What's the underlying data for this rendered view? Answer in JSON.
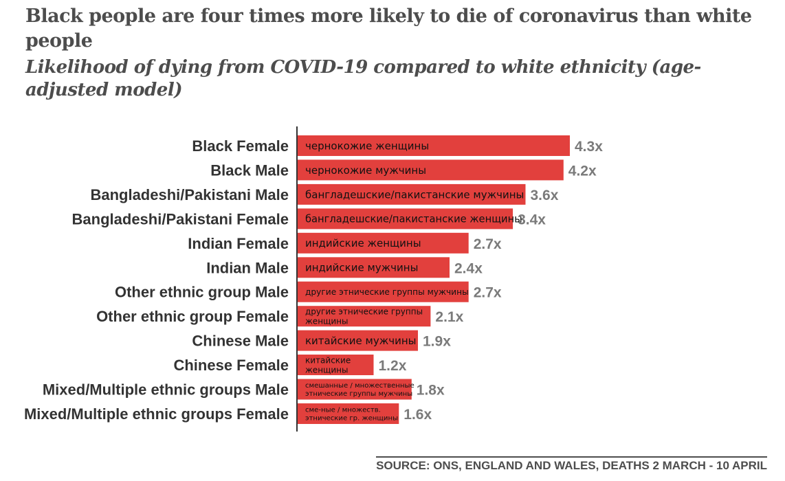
{
  "title": "Black people are four times more likely to die of coronavirus than white people",
  "subtitle": "Likelihood of dying from COVID-19 compared to white ethnicity (age-adjusted model)",
  "source": "SOURCE: ONS, ENGLAND AND WALES, DEATHS 2 MARCH - 10 APRIL",
  "colors": {
    "bar": "#e2403d",
    "axis": "#333333",
    "value": "#7a7a7a"
  },
  "chart_data": {
    "type": "bar",
    "orientation": "horizontal",
    "xlim": [
      0,
      4.3
    ],
    "categories": [
      "Black Female",
      "Black Male",
      "Bangladeshi/Pakistani Male",
      "Bangladeshi/Pakistani Female",
      "Indian Female",
      "Indian Male",
      "Other ethnic group Male",
      "Other ethnic group Female",
      "Chinese Male",
      "Chinese Female",
      "Mixed/Multiple ethnic groups Male",
      "Mixed/Multiple ethnic groups Female"
    ],
    "values": [
      4.3,
      4.2,
      3.6,
      3.4,
      2.7,
      2.4,
      2.7,
      2.1,
      1.9,
      1.2,
      1.8,
      1.6
    ],
    "value_labels": [
      "4.3x",
      "4.2x",
      "3.6x",
      "3.4x",
      "2.7x",
      "2.4x",
      "2.7x",
      "2.1x",
      "1.9x",
      "1.2x",
      "1.8x",
      "1.6x"
    ],
    "bar_annotations": [
      [
        "чернокожие женщины"
      ],
      [
        "чернокожие мужчины"
      ],
      [
        "бангладешские/пакистанские мужчины"
      ],
      [
        "бангладешские/пакистанские женщины"
      ],
      [
        "индийские женщины"
      ],
      [
        "индийские мужчины"
      ],
      [
        "другие этнические группы мужчины"
      ],
      [
        "другие этнические группы",
        "женщины"
      ],
      [
        "китайские мужчины"
      ],
      [
        "китайские",
        "женщины"
      ],
      [
        "смешанные / множественные",
        "этнические группы мужчины"
      ],
      [
        "сме-ные / множеств.",
        "этнические гр. женщины"
      ]
    ]
  }
}
